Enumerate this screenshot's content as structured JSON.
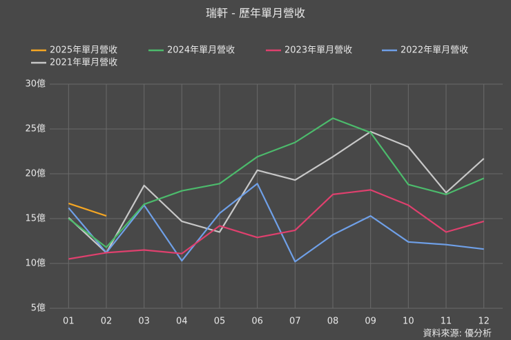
{
  "chart_data": {
    "type": "line",
    "title": "瑞軒 - 歷年單月營收",
    "categories": [
      "01",
      "02",
      "03",
      "04",
      "05",
      "06",
      "07",
      "08",
      "09",
      "10",
      "11",
      "12"
    ],
    "series": [
      {
        "name": "2025年單月營收",
        "color": "#f5a623",
        "values": [
          16.7,
          15.3,
          null,
          null,
          null,
          null,
          null,
          null,
          null,
          null,
          null,
          null
        ]
      },
      {
        "name": "2024年單月營收",
        "color": "#4cbb6c",
        "values": [
          15.0,
          11.8,
          16.6,
          18.1,
          18.9,
          21.9,
          23.5,
          26.2,
          24.6,
          18.8,
          17.7,
          19.5
        ]
      },
      {
        "name": "2023年單月營收",
        "color": "#e0406e",
        "values": [
          10.5,
          11.2,
          11.5,
          11.1,
          14.2,
          12.9,
          13.7,
          17.7,
          18.2,
          16.5,
          13.5,
          14.7
        ]
      },
      {
        "name": "2022年單月營收",
        "color": "#6fa0e8",
        "values": [
          16.2,
          11.2,
          16.5,
          10.3,
          15.6,
          18.9,
          10.2,
          13.2,
          15.3,
          12.4,
          12.1,
          11.6
        ]
      },
      {
        "name": "2021年單月營收",
        "color": "#c8c8c8",
        "values": [
          15.1,
          11.2,
          18.7,
          14.7,
          13.5,
          20.4,
          19.3,
          21.9,
          24.7,
          23.0,
          17.9,
          21.7
        ]
      }
    ],
    "ylim": [
      5,
      30
    ],
    "yticks": [
      {
        "value": 5,
        "label": "5億"
      },
      {
        "value": 10,
        "label": "10億"
      },
      {
        "value": 15,
        "label": "15億"
      },
      {
        "value": 20,
        "label": "20億"
      },
      {
        "value": 25,
        "label": "25億"
      },
      {
        "value": 30,
        "label": "30億"
      }
    ],
    "grid": true,
    "source": "資料來源: 優分析"
  }
}
